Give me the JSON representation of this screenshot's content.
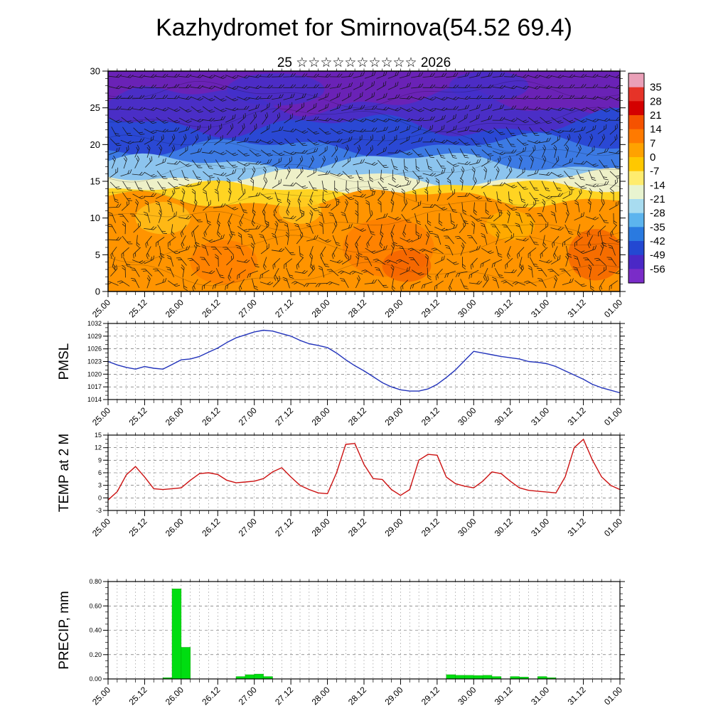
{
  "title": "Kazhydromet for Smirnova(54.52 69.4)",
  "subtitle": "25 ☆☆☆☆☆☆☆☆☆☆ 2026",
  "chart_data": {
    "time_axis": {
      "start_hour": 0,
      "end_hour": 168,
      "step_hours": 3,
      "tick_labels": [
        "25.00",
        "25.12",
        "26.00",
        "26.12",
        "27.00",
        "27.12",
        "28.00",
        "28.12",
        "29.00",
        "29.12",
        "30.00",
        "30.12",
        "31.00",
        "31.12",
        "01.00"
      ],
      "label_every_hours": 12,
      "minor_tick_hours": 3
    },
    "cross_section": {
      "type": "heatmap",
      "description": "Time-height temperature cross-section with wind barbs",
      "ylim": [
        0,
        30
      ],
      "yticks": [
        0,
        5,
        10,
        15,
        20,
        25,
        30
      ],
      "base_color": "#6a22b6",
      "bands": [
        {
          "level": 25.8,
          "amp": 1.6,
          "color": "#4a2ec6"
        },
        {
          "level": 22.8,
          "amp": 1.3,
          "color": "#2a48d4"
        },
        {
          "level": 19.8,
          "amp": 1.0,
          "color": "#3c7ae4"
        },
        {
          "level": 17.6,
          "amp": 0.9,
          "color": "#8cc4ee"
        },
        {
          "level": 15.6,
          "amp": 0.8,
          "color": "#eef0c8"
        },
        {
          "level": 14.1,
          "amp": 0.7,
          "color": "#ffd422"
        },
        {
          "level": 12.6,
          "amp": 0.9,
          "color": "#ff9400"
        }
      ],
      "patches": [
        {
          "h": 38,
          "lv": 4,
          "rh": 11,
          "rl": 3,
          "color": "#ff7a00"
        },
        {
          "h": 92,
          "lv": 6,
          "rh": 15,
          "rl": 4,
          "color": "#ff7a00"
        },
        {
          "h": 98,
          "lv": 3.5,
          "rh": 8,
          "rl": 2.2,
          "color": "#f25c00"
        },
        {
          "h": 160,
          "lv": 5,
          "rh": 9,
          "rl": 3.5,
          "color": "#f25c00"
        },
        {
          "h": 132,
          "lv": 9,
          "rh": 8,
          "rl": 2,
          "color": "#ffb400"
        },
        {
          "h": 18,
          "lv": 10,
          "rh": 9,
          "rl": 2.2,
          "color": "#ffc81e"
        },
        {
          "h": 63,
          "lv": 11,
          "rh": 7,
          "rl": 1.8,
          "color": "#ffc81e"
        },
        {
          "h": 55,
          "lv": 27.5,
          "rh": 16,
          "rl": 2.2,
          "color": "#4030cc"
        },
        {
          "h": 125,
          "lv": 28,
          "rh": 13,
          "rl": 2,
          "color": "#4030cc"
        }
      ],
      "colorbar": {
        "ticks": [
          35,
          28,
          21,
          14,
          7,
          0,
          -7,
          -14,
          -21,
          -28,
          -35,
          -42,
          -49,
          -56
        ],
        "colors": [
          "#eaa0b8",
          "#e63328",
          "#d40000",
          "#f55200",
          "#ff7a00",
          "#ffa200",
          "#ffc800",
          "#ffec6e",
          "#e8f4d0",
          "#a8dcf0",
          "#5cb4ee",
          "#2a7ae0",
          "#2348d2",
          "#4a28c6",
          "#7a2cc8"
        ]
      }
    },
    "panels": [
      {
        "id": "pmsl",
        "label": "PMSL",
        "type": "line",
        "line_color": "#2233bb",
        "ylim": [
          1014,
          1032
        ],
        "ytick_step": 3,
        "ytick_minor": 1,
        "ytick_labels": [
          1014,
          1017,
          1020,
          1023,
          1026,
          1029,
          1032
        ],
        "values": [
          1023,
          1022.2,
          1021.6,
          1021.2,
          1021.8,
          1021.4,
          1021.2,
          1022.3,
          1023.4,
          1023.6,
          1024.2,
          1025.2,
          1026.2,
          1027.5,
          1028.6,
          1029.3,
          1030,
          1030.4,
          1030.2,
          1029.6,
          1029,
          1028,
          1027.2,
          1026.8,
          1026.3,
          1025,
          1023.4,
          1022,
          1020.8,
          1019.4,
          1018,
          1017,
          1016.3,
          1016,
          1016,
          1016.5,
          1017.6,
          1019.2,
          1021,
          1023.2,
          1025.4,
          1025,
          1024.6,
          1024.2,
          1023.9,
          1023.6,
          1023,
          1022.8,
          1022.5,
          1021.8,
          1020.8,
          1019.8,
          1018.8,
          1017.6,
          1016.8,
          1016.2,
          1015.6
        ]
      },
      {
        "id": "temp",
        "label": "TEMP at 2 M",
        "type": "line",
        "line_color": "#cc1111",
        "ylim": [
          -3,
          15
        ],
        "ytick_step": 3,
        "ytick_minor": 1,
        "ytick_labels": [
          -3,
          0,
          3,
          6,
          9,
          12,
          15
        ],
        "values": [
          -0.5,
          1.5,
          5.5,
          7.5,
          5,
          2.2,
          2,
          2.2,
          2.4,
          4.2,
          5.8,
          6,
          5.6,
          4.2,
          3.6,
          3.8,
          4,
          4.6,
          6.2,
          7.2,
          5,
          3,
          2,
          1.2,
          1,
          6,
          12.8,
          13,
          8,
          4.6,
          4.4,
          2,
          0.6,
          2,
          9,
          10.4,
          10.2,
          5,
          3.4,
          2.8,
          2.4,
          4,
          6.2,
          5.8,
          4,
          2.4,
          1.8,
          1.6,
          1.4,
          1.2,
          5,
          12,
          14,
          9,
          5,
          3,
          2
        ]
      },
      {
        "id": "precip",
        "label": "PRECIP, mm",
        "type": "bar",
        "bar_color": "#00dd11",
        "ylim": [
          0,
          0.8
        ],
        "ytick_step": 0.2,
        "ytick_minor": 0.05,
        "ytick_labels": [
          "0.00",
          "0.20",
          "0.40",
          "0.60",
          "0.80"
        ],
        "values": [
          0,
          0,
          0,
          0,
          0,
          0,
          0.01,
          0.74,
          0.26,
          0,
          0,
          0,
          0,
          0,
          0.02,
          0.035,
          0.04,
          0.02,
          0,
          0,
          0,
          0,
          0,
          0,
          0,
          0,
          0,
          0,
          0,
          0,
          0,
          0,
          0,
          0,
          0,
          0,
          0,
          0.035,
          0.03,
          0.03,
          0.028,
          0.03,
          0.02,
          0,
          0.02,
          0.015,
          0,
          0.02,
          0.01,
          0,
          0,
          0,
          0,
          0,
          0,
          0,
          0
        ]
      }
    ]
  }
}
